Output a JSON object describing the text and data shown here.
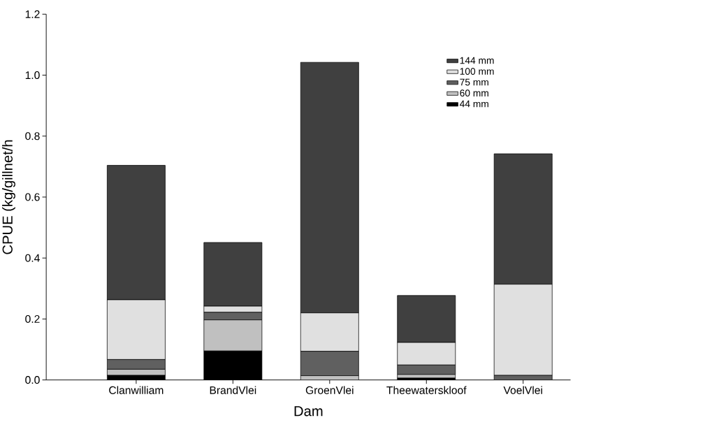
{
  "chart_data": {
    "type": "bar",
    "stacked": true,
    "xlabel": "Dam",
    "ylabel": "CPUE (kg/gillnet/h",
    "categories": [
      "Clanwilliam",
      "BrandVlei",
      "GroenVlei",
      "Theewaterskloof",
      "VoelVlei"
    ],
    "series": [
      {
        "name": "44 mm",
        "color": "#000000",
        "values": [
          0.015,
          0.095,
          null,
          0.006,
          0.0
        ]
      },
      {
        "name": "60 mm",
        "color": "#c0c0c0",
        "values": [
          0.02,
          0.102,
          0.014,
          0.012,
          0.0
        ]
      },
      {
        "name": "75 mm",
        "color": "#606060",
        "values": [
          0.032,
          0.025,
          0.08,
          0.031,
          0.015
        ]
      },
      {
        "name": "100 mm",
        "color": "#e0e0e0",
        "values": [
          0.196,
          0.02,
          0.126,
          0.074,
          0.299
        ]
      },
      {
        "name": "144 mm",
        "color": "#404040",
        "values": [
          0.441,
          0.209,
          0.822,
          0.154,
          0.428
        ]
      }
    ],
    "ylim": [
      0,
      1.2
    ],
    "yticks": [
      {
        "value": 0,
        "label": "0.0"
      },
      {
        "value": 0.2,
        "label": "0.2"
      },
      {
        "value": 0.4,
        "label": "0.4"
      },
      {
        "value": 0.6,
        "label": "0.6"
      },
      {
        "value": 0.8,
        "label": "0.8"
      },
      {
        "value": 1.0,
        "label": "1.0"
      },
      {
        "value": 1.2,
        "label": "1.2"
      }
    ],
    "grid": false,
    "legend": "top right"
  }
}
